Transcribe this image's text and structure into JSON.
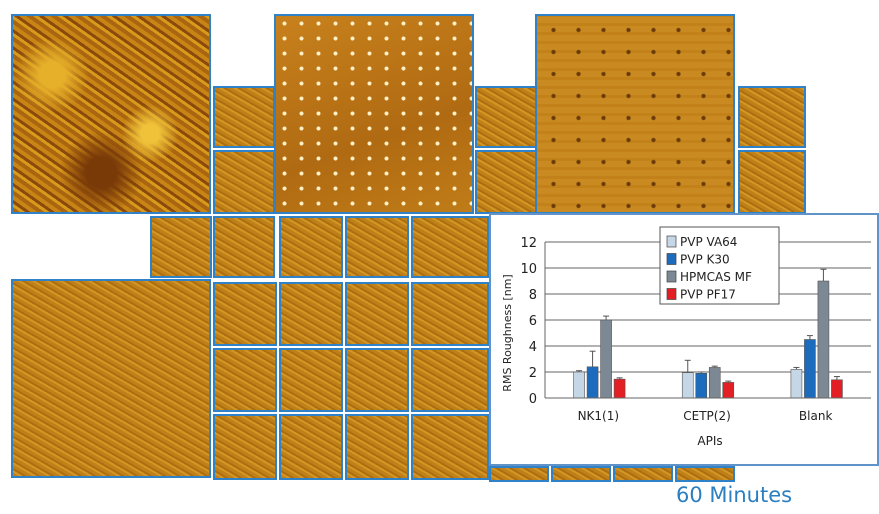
{
  "caption": "60 Minutes",
  "tiles": [
    {
      "kind": "rough"
    },
    {
      "kind": "dots"
    },
    {
      "kind": "pits"
    },
    {
      "kind": "fine"
    },
    {
      "kind": "fine"
    },
    {
      "kind": "fine"
    },
    {
      "kind": "fine"
    },
    {
      "kind": "fine"
    },
    {
      "kind": "fine"
    },
    {
      "kind": "fine"
    },
    {
      "kind": "fine"
    },
    {
      "kind": "fine"
    },
    {
      "kind": "fine"
    },
    {
      "kind": "fine"
    },
    {
      "kind": "fine"
    },
    {
      "kind": "fine"
    },
    {
      "kind": "fine"
    },
    {
      "kind": "fine"
    },
    {
      "kind": "fine"
    },
    {
      "kind": "fine"
    },
    {
      "kind": "fine"
    },
    {
      "kind": "fine"
    },
    {
      "kind": "fine"
    },
    {
      "kind": "fine"
    },
    {
      "kind": "fine"
    },
    {
      "kind": "fine"
    },
    {
      "kind": "fine"
    },
    {
      "kind": "fine"
    },
    {
      "kind": "fine"
    },
    {
      "kind": "fine"
    },
    {
      "kind": "fine"
    }
  ],
  "chart_data": {
    "type": "bar",
    "categories": [
      "NK1(1)",
      "CETP(2)",
      "Blank"
    ],
    "xlabel": "APIs",
    "ylabel": "RMS Roughness [nm]",
    "ylim": [
      0,
      12
    ],
    "yticks": [
      "0",
      "2",
      "4",
      "6",
      "8",
      "10",
      "12"
    ],
    "grid": true,
    "legend_position": "top-right",
    "series": [
      {
        "name": "PVP VA64",
        "color": "#c5d7e6",
        "values": [
          2.0,
          1.95,
          2.2
        ],
        "errors": [
          0.1,
          0.95,
          0.15
        ]
      },
      {
        "name": "PVP K30",
        "color": "#1d6bbd",
        "values": [
          2.4,
          1.9,
          4.5
        ],
        "errors": [
          1.2,
          0.1,
          0.3
        ]
      },
      {
        "name": "HPMCAS MF",
        "color": "#7c8894",
        "values": [
          6.0,
          2.35,
          9.0
        ],
        "errors": [
          0.3,
          0.1,
          0.9
        ]
      },
      {
        "name": "PVP PF17",
        "color": "#e41e25",
        "values": [
          1.45,
          1.2,
          1.4
        ],
        "errors": [
          0.1,
          0.1,
          0.25
        ]
      }
    ]
  }
}
